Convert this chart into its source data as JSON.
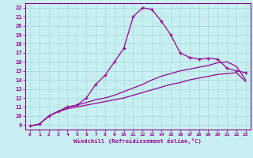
{
  "xlabel": "Windchill (Refroidissement éolien,°C)",
  "bg_color": "#c8f0f0",
  "grid_color": "#a8d8d8",
  "line_color": "#990099",
  "spine_color": "#880088",
  "xlim": [
    -0.5,
    23.5
  ],
  "ylim": [
    8.5,
    22.5
  ],
  "xticks": [
    0,
    1,
    2,
    3,
    4,
    5,
    6,
    7,
    8,
    9,
    10,
    11,
    12,
    13,
    14,
    15,
    16,
    17,
    18,
    19,
    20,
    21,
    22,
    23
  ],
  "yticks": [
    9,
    10,
    11,
    12,
    13,
    14,
    15,
    16,
    17,
    18,
    19,
    20,
    21,
    22
  ],
  "curve_main_x": [
    0,
    1,
    2,
    3,
    4,
    5,
    6,
    7,
    8,
    9,
    10,
    11,
    12,
    13,
    14,
    15,
    16,
    17,
    18,
    19,
    20,
    21,
    22,
    23
  ],
  "curve_main_y": [
    8.9,
    9.1,
    10.0,
    10.5,
    11.0,
    11.2,
    12.0,
    13.5,
    14.5,
    16.0,
    17.5,
    21.0,
    22.0,
    21.8,
    20.5,
    19.0,
    17.0,
    16.5,
    16.3,
    16.4,
    16.3,
    15.3,
    15.0,
    14.8
  ],
  "curve_mid_x": [
    0,
    1,
    2,
    3,
    4,
    5,
    6,
    7,
    8,
    9,
    10,
    11,
    12,
    13,
    14,
    15,
    16,
    17,
    18,
    19,
    20,
    21,
    22,
    23
  ],
  "curve_mid_y": [
    8.9,
    9.1,
    10.0,
    10.5,
    11.0,
    11.2,
    11.5,
    11.8,
    12.0,
    12.3,
    12.7,
    13.1,
    13.5,
    14.0,
    14.4,
    14.7,
    15.0,
    15.2,
    15.4,
    15.6,
    15.9,
    16.0,
    15.5,
    14.0
  ],
  "curve_low_x": [
    0,
    1,
    2,
    3,
    4,
    5,
    6,
    7,
    8,
    9,
    10,
    11,
    12,
    13,
    14,
    15,
    16,
    17,
    18,
    19,
    20,
    21,
    22,
    23
  ],
  "curve_low_y": [
    8.9,
    9.1,
    10.0,
    10.5,
    10.8,
    11.0,
    11.2,
    11.4,
    11.6,
    11.8,
    12.0,
    12.3,
    12.6,
    12.9,
    13.2,
    13.5,
    13.7,
    14.0,
    14.2,
    14.4,
    14.6,
    14.7,
    14.8,
    13.8
  ]
}
